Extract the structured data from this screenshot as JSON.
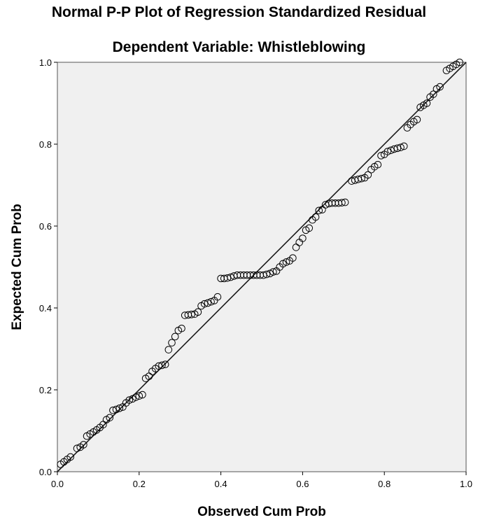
{
  "chart_data": {
    "type": "scatter",
    "title": "Normal P-P Plot of Regression Standardized Residual",
    "subtitle": "Dependent Variable: Whistleblowing",
    "xlabel": "Observed Cum Prob",
    "ylabel": "Expected Cum Prob",
    "xlim": [
      0.0,
      1.0
    ],
    "ylim": [
      0.0,
      1.0
    ],
    "xticks": [
      "0.0",
      "0.2",
      "0.4",
      "0.6",
      "0.8",
      "1.0"
    ],
    "yticks": [
      "0.0",
      "0.2",
      "0.4",
      "0.6",
      "0.8",
      "1.0"
    ],
    "grid": false,
    "plot_background": "#f0f0f0",
    "marker_color": "#000000",
    "reference_line": [
      [
        0.0,
        0.0
      ],
      [
        1.0,
        1.0
      ]
    ],
    "series": [
      {
        "points": [
          [
            0.008,
            0.018
          ],
          [
            0.016,
            0.024
          ],
          [
            0.024,
            0.03
          ],
          [
            0.032,
            0.036
          ],
          [
            0.048,
            0.057
          ],
          [
            0.056,
            0.06
          ],
          [
            0.064,
            0.066
          ],
          [
            0.072,
            0.087
          ],
          [
            0.08,
            0.092
          ],
          [
            0.088,
            0.097
          ],
          [
            0.096,
            0.102
          ],
          [
            0.104,
            0.108
          ],
          [
            0.112,
            0.115
          ],
          [
            0.12,
            0.127
          ],
          [
            0.128,
            0.132
          ],
          [
            0.136,
            0.15
          ],
          [
            0.144,
            0.152
          ],
          [
            0.152,
            0.155
          ],
          [
            0.16,
            0.158
          ],
          [
            0.168,
            0.168
          ],
          [
            0.176,
            0.175
          ],
          [
            0.184,
            0.178
          ],
          [
            0.192,
            0.182
          ],
          [
            0.2,
            0.185
          ],
          [
            0.208,
            0.188
          ],
          [
            0.216,
            0.228
          ],
          [
            0.224,
            0.233
          ],
          [
            0.232,
            0.245
          ],
          [
            0.24,
            0.252
          ],
          [
            0.248,
            0.258
          ],
          [
            0.256,
            0.26
          ],
          [
            0.264,
            0.262
          ],
          [
            0.272,
            0.298
          ],
          [
            0.28,
            0.315
          ],
          [
            0.288,
            0.33
          ],
          [
            0.296,
            0.345
          ],
          [
            0.304,
            0.35
          ],
          [
            0.312,
            0.382
          ],
          [
            0.32,
            0.383
          ],
          [
            0.328,
            0.384
          ],
          [
            0.336,
            0.385
          ],
          [
            0.344,
            0.39
          ],
          [
            0.352,
            0.405
          ],
          [
            0.36,
            0.41
          ],
          [
            0.368,
            0.412
          ],
          [
            0.376,
            0.415
          ],
          [
            0.384,
            0.418
          ],
          [
            0.392,
            0.427
          ],
          [
            0.4,
            0.472
          ],
          [
            0.408,
            0.472
          ],
          [
            0.416,
            0.473
          ],
          [
            0.424,
            0.475
          ],
          [
            0.432,
            0.478
          ],
          [
            0.44,
            0.48
          ],
          [
            0.448,
            0.48
          ],
          [
            0.456,
            0.48
          ],
          [
            0.464,
            0.48
          ],
          [
            0.472,
            0.48
          ],
          [
            0.48,
            0.48
          ],
          [
            0.488,
            0.48
          ],
          [
            0.496,
            0.48
          ],
          [
            0.504,
            0.48
          ],
          [
            0.512,
            0.482
          ],
          [
            0.52,
            0.484
          ],
          [
            0.528,
            0.488
          ],
          [
            0.536,
            0.49
          ],
          [
            0.544,
            0.5
          ],
          [
            0.552,
            0.508
          ],
          [
            0.56,
            0.512
          ],
          [
            0.568,
            0.515
          ],
          [
            0.576,
            0.522
          ],
          [
            0.584,
            0.548
          ],
          [
            0.592,
            0.56
          ],
          [
            0.6,
            0.57
          ],
          [
            0.608,
            0.59
          ],
          [
            0.616,
            0.595
          ],
          [
            0.624,
            0.615
          ],
          [
            0.632,
            0.622
          ],
          [
            0.64,
            0.638
          ],
          [
            0.648,
            0.64
          ],
          [
            0.656,
            0.652
          ],
          [
            0.664,
            0.655
          ],
          [
            0.672,
            0.656
          ],
          [
            0.68,
            0.656
          ],
          [
            0.688,
            0.656
          ],
          [
            0.696,
            0.657
          ],
          [
            0.704,
            0.658
          ],
          [
            0.72,
            0.71
          ],
          [
            0.728,
            0.712
          ],
          [
            0.736,
            0.714
          ],
          [
            0.744,
            0.716
          ],
          [
            0.752,
            0.718
          ],
          [
            0.76,
            0.725
          ],
          [
            0.768,
            0.738
          ],
          [
            0.776,
            0.745
          ],
          [
            0.784,
            0.75
          ],
          [
            0.792,
            0.772
          ],
          [
            0.8,
            0.775
          ],
          [
            0.808,
            0.782
          ],
          [
            0.816,
            0.785
          ],
          [
            0.824,
            0.788
          ],
          [
            0.832,
            0.79
          ],
          [
            0.84,
            0.792
          ],
          [
            0.848,
            0.795
          ],
          [
            0.856,
            0.84
          ],
          [
            0.864,
            0.848
          ],
          [
            0.872,
            0.855
          ],
          [
            0.88,
            0.86
          ],
          [
            0.888,
            0.89
          ],
          [
            0.896,
            0.895
          ],
          [
            0.904,
            0.9
          ],
          [
            0.912,
            0.915
          ],
          [
            0.92,
            0.922
          ],
          [
            0.928,
            0.935
          ],
          [
            0.936,
            0.94
          ],
          [
            0.952,
            0.98
          ],
          [
            0.96,
            0.985
          ],
          [
            0.968,
            0.99
          ],
          [
            0.976,
            0.995
          ],
          [
            0.984,
            1.0
          ]
        ]
      }
    ]
  }
}
